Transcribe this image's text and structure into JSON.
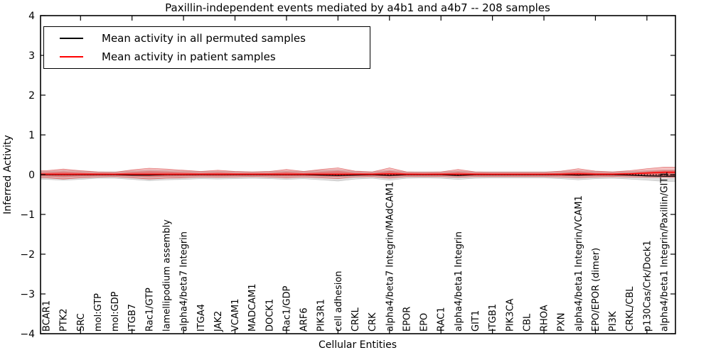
{
  "title": "Paxillin-independent events mediated by a4b1 and a4b7 -- 208 samples",
  "axes": {
    "xlabel": "Cellular Entities",
    "ylabel": "Inferred Activity",
    "ylim": [
      -4,
      4
    ],
    "yticks": [
      -4,
      -3,
      -2,
      -1,
      0,
      1,
      2,
      3,
      4
    ],
    "xtick_indices": [
      2,
      5,
      8,
      11,
      14,
      17,
      20,
      23,
      26,
      29,
      32,
      35
    ]
  },
  "legend": {
    "entries": [
      {
        "label": "Mean activity in all permuted samples",
        "color": "#000000"
      },
      {
        "label": "Mean activity in patient samples",
        "color": "#ff0000"
      }
    ]
  },
  "colors": {
    "patient_band_fill": "rgba(228,60,60,0.32)",
    "patient_band_inner_fill": "rgba(220,40,40,0.38)",
    "patient_band_edge": "rgba(205,35,35,0.55)",
    "permuted_band_fill": "rgba(150,150,150,0.30)",
    "permuted_band_edge": "rgba(130,130,130,0.40)",
    "patient_line": "#ff0000",
    "permuted_line": "#000000",
    "zero_line": "#000000",
    "frame": "#000000"
  },
  "chart_data": {
    "type": "area",
    "title": "Paxillin-independent events mediated by a4b1 and a4b7 -- 208 samples",
    "xlabel": "Cellular Entities",
    "ylabel": "Inferred Activity",
    "ylim": [
      -4,
      4
    ],
    "legend_position": "upper left",
    "grid": false,
    "categories": [
      "BCAR1",
      "PTK2",
      "SRC",
      "mol:GTP",
      "mol:GDP",
      "ITGB7",
      "Rac1/GTP",
      "lamellipodium assembly",
      "alpha4/beta7 Integrin",
      "ITGA4",
      "JAK2",
      "VCAM1",
      "MADCAM1",
      "DOCK1",
      "Rac1/GDP",
      "ARF6",
      "PIK3R1",
      "cell adhesion",
      "CRKL",
      "CRK",
      "alpha4/beta7 Integrin/MAdCAM1",
      "EPOR",
      "EPO",
      "RAC1",
      "alpha4/beta1 Integrin",
      "GIT1",
      "ITGB1",
      "PIK3CA",
      "CBL",
      "RHOA",
      "PXN",
      "alpha4/beta1 Integrin/VCAM1",
      "EPO/EPOR (dimer)",
      "PI3K",
      "CRKL/CBL",
      "p130Cas/Crk/Dock1",
      "alpha4/beta1 Integrin/Paxillin/GIT1"
    ],
    "series": [
      {
        "name": "patient_band_upper",
        "values": [
          0.1,
          0.14,
          0.1,
          0.07,
          0.06,
          0.12,
          0.16,
          0.14,
          0.11,
          0.08,
          0.11,
          0.08,
          0.07,
          0.08,
          0.13,
          0.08,
          0.13,
          0.17,
          0.09,
          0.07,
          0.17,
          0.07,
          0.06,
          0.07,
          0.13,
          0.07,
          0.06,
          0.06,
          0.06,
          0.06,
          0.09,
          0.15,
          0.09,
          0.07,
          0.1,
          0.15,
          0.19
        ]
      },
      {
        "name": "patient_band_lower",
        "values": [
          -0.08,
          -0.11,
          -0.08,
          -0.06,
          -0.05,
          -0.08,
          -0.11,
          -0.09,
          -0.08,
          -0.06,
          -0.07,
          -0.06,
          -0.05,
          -0.06,
          -0.08,
          -0.06,
          -0.08,
          -0.1,
          -0.06,
          -0.05,
          -0.09,
          -0.05,
          -0.05,
          -0.05,
          -0.07,
          -0.05,
          -0.05,
          -0.05,
          -0.05,
          -0.05,
          -0.06,
          -0.08,
          -0.06,
          -0.05,
          -0.06,
          -0.07,
          -0.07
        ]
      },
      {
        "name": "permuted_band_upper",
        "values": [
          0.08,
          0.1,
          0.09,
          0.07,
          0.07,
          0.09,
          0.11,
          0.1,
          0.09,
          0.08,
          0.08,
          0.08,
          0.07,
          0.08,
          0.09,
          0.08,
          0.1,
          0.12,
          0.08,
          0.07,
          0.11,
          0.07,
          0.07,
          0.07,
          0.09,
          0.07,
          0.07,
          0.07,
          0.07,
          0.07,
          0.08,
          0.1,
          0.08,
          0.07,
          0.08,
          0.1,
          0.12
        ]
      },
      {
        "name": "permuted_band_lower",
        "values": [
          -0.12,
          -0.14,
          -0.12,
          -0.09,
          -0.09,
          -0.12,
          -0.15,
          -0.13,
          -0.12,
          -0.1,
          -0.11,
          -0.1,
          -0.09,
          -0.1,
          -0.12,
          -0.1,
          -0.13,
          -0.16,
          -0.11,
          -0.09,
          -0.14,
          -0.09,
          -0.08,
          -0.09,
          -0.12,
          -0.09,
          -0.08,
          -0.08,
          -0.08,
          -0.08,
          -0.1,
          -0.13,
          -0.1,
          -0.09,
          -0.11,
          -0.14,
          -0.17
        ]
      },
      {
        "name": "mean_patient",
        "values": [
          0.01,
          0.01,
          0.01,
          0.01,
          0.01,
          0.01,
          0.01,
          0.01,
          0.01,
          0.01,
          0.01,
          0.01,
          0.01,
          0.01,
          0.01,
          0.01,
          0.01,
          0.01,
          0.01,
          0.01,
          0.02,
          0.01,
          0.01,
          0.01,
          0.01,
          0.01,
          0.01,
          0.01,
          0.01,
          0.01,
          0.01,
          0.02,
          0.01,
          0.01,
          0.02,
          0.04,
          0.06
        ]
      },
      {
        "name": "mean_permuted",
        "values": [
          0.0,
          0.0,
          0.0,
          0.0,
          0.0,
          -0.01,
          -0.01,
          0.0,
          0.0,
          0.0,
          0.0,
          0.0,
          0.0,
          0.0,
          0.0,
          0.0,
          -0.01,
          -0.02,
          -0.01,
          0.0,
          -0.02,
          0.0,
          0.0,
          0.0,
          -0.02,
          0.0,
          0.0,
          0.0,
          0.0,
          0.0,
          0.0,
          -0.01,
          0.0,
          0.0,
          -0.01,
          -0.03,
          -0.04
        ]
      },
      {
        "name": "reference_zero_line",
        "values": [
          0.0
        ]
      }
    ]
  }
}
